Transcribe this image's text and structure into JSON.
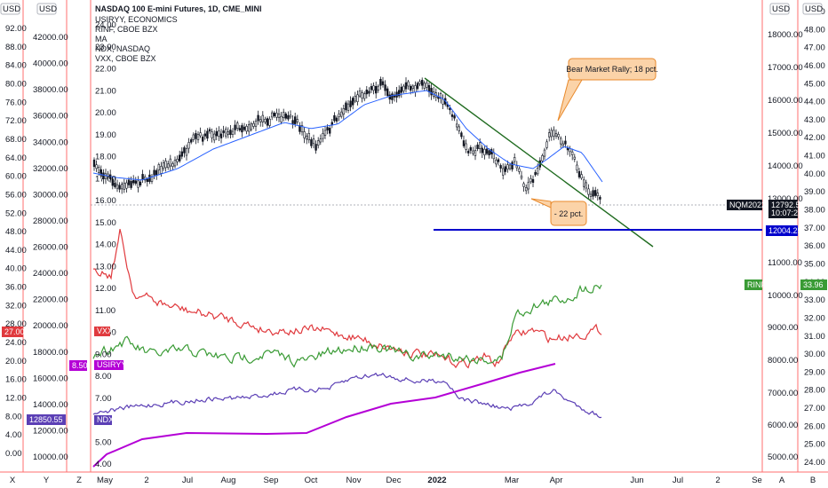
{
  "chart_data": {
    "type": "line",
    "title": "NASDAQ 100 E-mini Futures, 1D, CME_MINI",
    "legend": [
      "USIRYY, ECONOMICS",
      "RINF, CBOE BZX",
      "MA",
      "NDX, NASDAQ",
      "VXX, CBOE BZX"
    ],
    "currency_labels": [
      "USD",
      "USD",
      "USD",
      "USD"
    ],
    "footer_buttons": [
      "X",
      "Y",
      "Z",
      "A",
      "B"
    ],
    "x_ticks": [
      "May",
      "2",
      "Jul",
      "Aug",
      "Sep",
      "Oct",
      "Nov",
      "Dec",
      "2022",
      "Mar",
      "Apr",
      "Jun",
      "Jul",
      "2",
      "Se"
    ],
    "axes": {
      "usiryy": [
        "92.00",
        "88.00",
        "84.00",
        "80.00",
        "76.00",
        "72.00",
        "68.00",
        "64.00",
        "60.00",
        "56.00",
        "52.00",
        "48.00",
        "44.00",
        "40.00",
        "36.00",
        "32.00",
        "28.00",
        "24.00",
        "20.00",
        "16.00",
        "12.00",
        "8.00",
        "4.00",
        "0.00"
      ],
      "ndx": [
        "42000.00",
        "40000.00",
        "38000.00",
        "36000.00",
        "34000.00",
        "32000.00",
        "30000.00",
        "28000.00",
        "26000.00",
        "24000.00",
        "22000.00",
        "20000.00",
        "18000.00",
        "16000.00",
        "14000.00",
        "12000.00",
        "10000.00"
      ],
      "vxx": [
        "24.00",
        "23.00",
        "22.00",
        "21.00",
        "20.00",
        "19.00",
        "18.00",
        "17.00",
        "16.00",
        "15.00",
        "14.00",
        "13.00",
        "12.00",
        "11.00",
        "10.00",
        "9.00",
        "8.00",
        "7.00",
        "6.00",
        "5.00",
        "4.00"
      ],
      "nq": [
        "18000.00",
        "17000.00",
        "16000.00",
        "15000.00",
        "14000.00",
        "13000.00",
        "11000.00",
        "10000.00",
        "9000.00",
        "8000.00",
        "7000.00",
        "6000.00",
        "5000.00"
      ],
      "rinf": [
        "49.00",
        "48.00",
        "47.00",
        "46.00",
        "45.00",
        "44.00",
        "43.00",
        "42.00",
        "41.00",
        "40.00",
        "39.00",
        "38.00",
        "37.00",
        "36.00",
        "35.00",
        "34.00",
        "33.00",
        "32.00",
        "31.00",
        "30.00",
        "29.00",
        "28.00",
        "27.00",
        "26.00",
        "25.00",
        "24.00"
      ]
    },
    "price_tags": {
      "nq_symbol": "NQM2022",
      "nq_price": "12792.50",
      "nq_countdown": "10:07:29",
      "level_line": "12004.25",
      "rinf_name": "RINF",
      "rinf_value": "33.96",
      "vxx_name": "VXX",
      "vxx_value": "27.00",
      "usiryy_name": "USIRYY",
      "usiryy_value": "8.50",
      "ndx_name": "NDX",
      "ndx_value": "12850.55"
    },
    "callouts": [
      "Bear Market Rally; 18 pct.",
      "- 22 pct."
    ],
    "colors": {
      "nq_price": "#131722",
      "ma": "#2962ff",
      "vxx": "#e03a3e",
      "rinf": "#3a9b35",
      "ndx": "#5b3fb5",
      "usiryy": "#b400d6",
      "trendline": "#1f6b1f",
      "support": "#0000cc",
      "axis_border": "#ff6f6f",
      "callout_fill": "#fbd3a8",
      "callout_border": "#e8892b"
    },
    "support_level": 12004.25,
    "nq_close": 12792.5
  }
}
